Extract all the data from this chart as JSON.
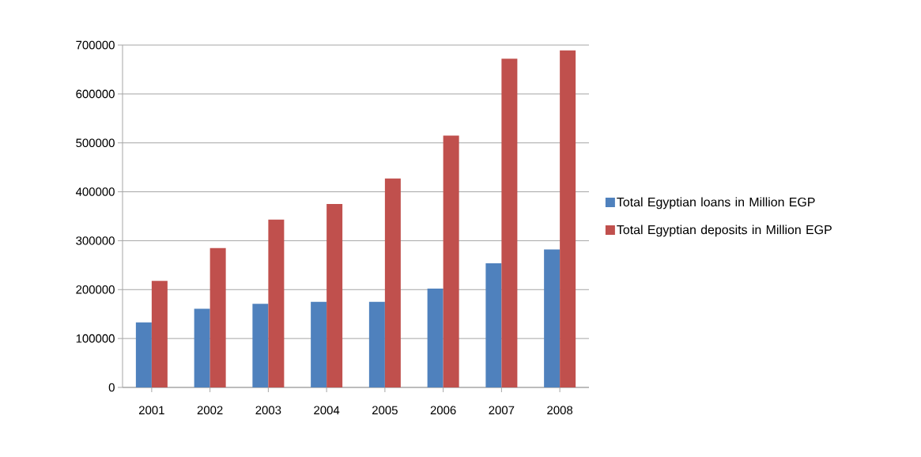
{
  "chart_data": {
    "type": "bar",
    "categories": [
      "2001",
      "2002",
      "2003",
      "2004",
      "2005",
      "2006",
      "2007",
      "2008"
    ],
    "series": [
      {
        "name": "Total Egyptian loans in Million EGP",
        "color": "#4f81bd",
        "values": [
          133000,
          161000,
          171000,
          175000,
          175000,
          202000,
          254000,
          282000
        ]
      },
      {
        "name": "Total Egyptian deposits in Million EGP",
        "color": "#c0504d",
        "values": [
          218000,
          285000,
          343000,
          375000,
          427000,
          515000,
          672000,
          689000
        ]
      }
    ],
    "ylim": [
      0,
      700000
    ],
    "yticks": [
      0,
      100000,
      200000,
      300000,
      400000,
      500000,
      600000,
      700000
    ],
    "grid": "y",
    "legend": "right"
  }
}
